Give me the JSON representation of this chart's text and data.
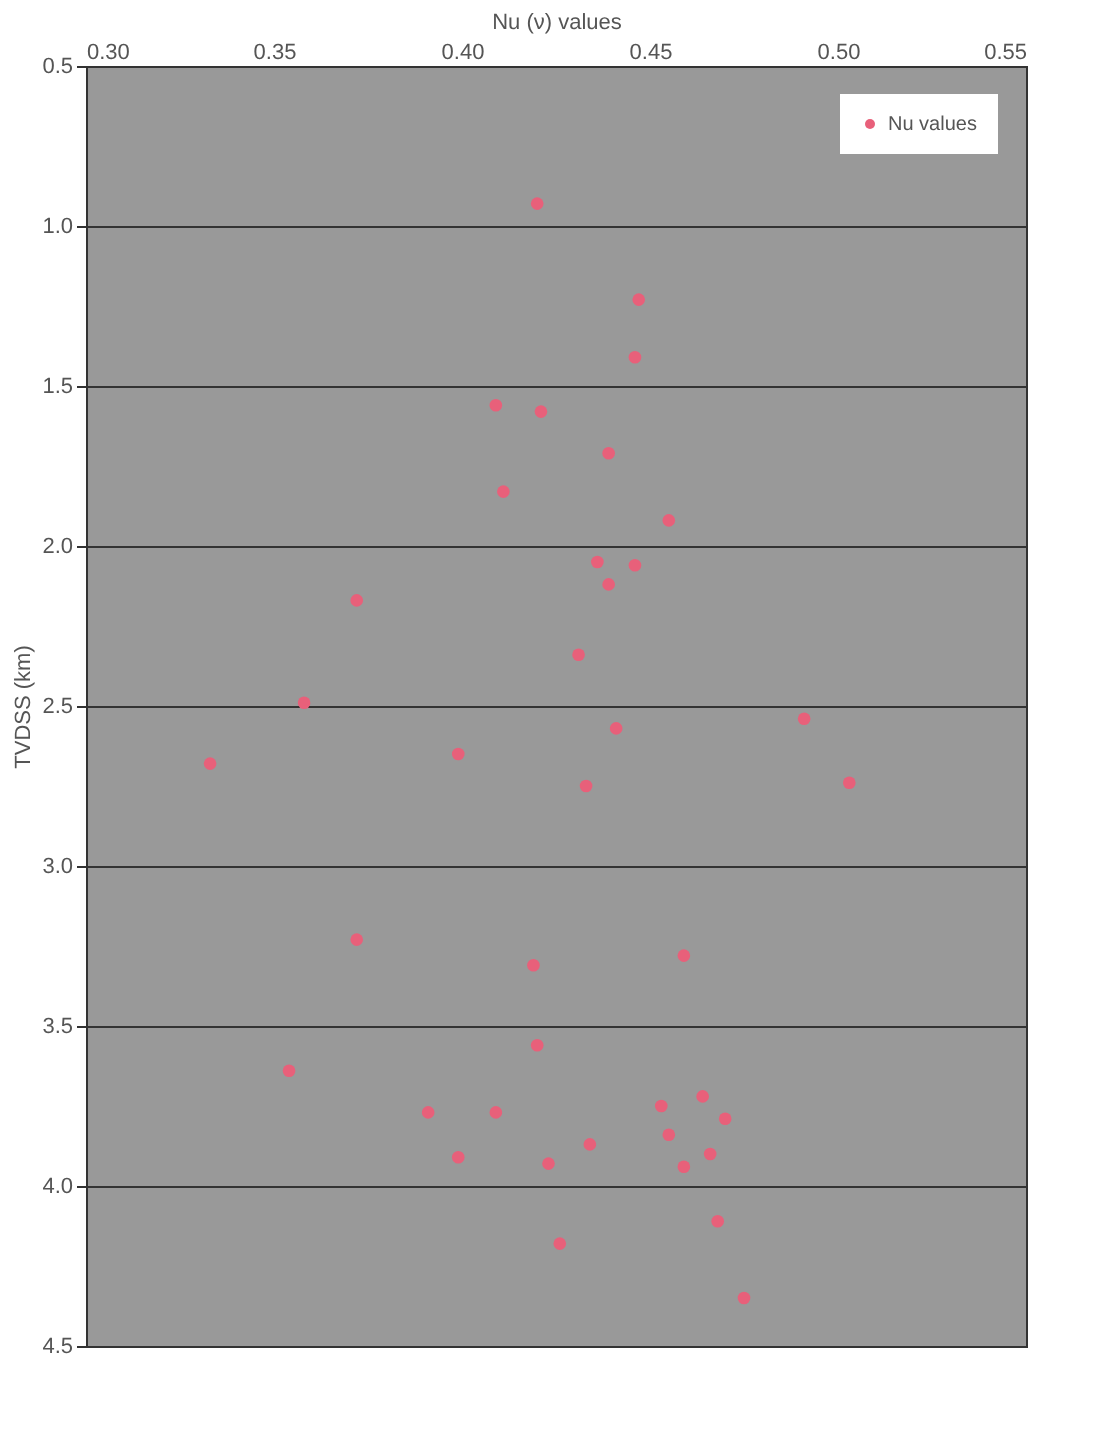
{
  "chart_data": {
    "type": "scatter",
    "xlabel": "Nu (ν) values",
    "ylabel": "TVDSS (km)",
    "xlim": [
      0.3,
      0.55
    ],
    "ylim": [
      4.5,
      0.5
    ],
    "xticks": [
      {
        "value": 0.3,
        "label": "0.30"
      },
      {
        "value": 0.35,
        "label": "0.35"
      },
      {
        "value": 0.4,
        "label": "0.40"
      },
      {
        "value": 0.45,
        "label": "0.45"
      },
      {
        "value": 0.5,
        "label": "0.50"
      },
      {
        "value": 0.55,
        "label": "0.55"
      }
    ],
    "yticks": [
      {
        "value": 0.5,
        "label": "0.5"
      },
      {
        "value": 1.0,
        "label": "1.0"
      },
      {
        "value": 1.5,
        "label": "1.5"
      },
      {
        "value": 2.0,
        "label": "2.0"
      },
      {
        "value": 2.5,
        "label": "2.5"
      },
      {
        "value": 3.0,
        "label": "3.0"
      },
      {
        "value": 3.5,
        "label": "3.5"
      },
      {
        "value": 4.0,
        "label": "4.0"
      },
      {
        "value": 4.5,
        "label": "4.5"
      }
    ],
    "grid": "y",
    "legend": "top right",
    "marker": "circle",
    "series": [
      {
        "name": "Nu values",
        "color": "#e8607a",
        "x": [
          0.42,
          0.447,
          0.446,
          0.409,
          0.421,
          0.439,
          0.411,
          0.455,
          0.436,
          0.446,
          0.439,
          0.372,
          0.431,
          0.358,
          0.491,
          0.441,
          0.399,
          0.333,
          0.433,
          0.503,
          0.372,
          0.419,
          0.459,
          0.42,
          0.354,
          0.391,
          0.409,
          0.453,
          0.464,
          0.47,
          0.455,
          0.434,
          0.466,
          0.399,
          0.423,
          0.459,
          0.468,
          0.426,
          0.475
        ],
        "values": [
          0.93,
          1.23,
          1.41,
          1.56,
          1.58,
          1.71,
          1.83,
          1.92,
          2.05,
          2.06,
          2.12,
          2.17,
          2.34,
          2.49,
          2.54,
          2.57,
          2.65,
          2.68,
          2.75,
          2.74,
          3.23,
          3.31,
          3.28,
          3.56,
          3.64,
          3.77,
          3.77,
          3.75,
          3.72,
          3.79,
          3.84,
          3.87,
          3.9,
          3.91,
          3.93,
          3.94,
          4.11,
          4.18,
          4.35
        ]
      }
    ]
  }
}
